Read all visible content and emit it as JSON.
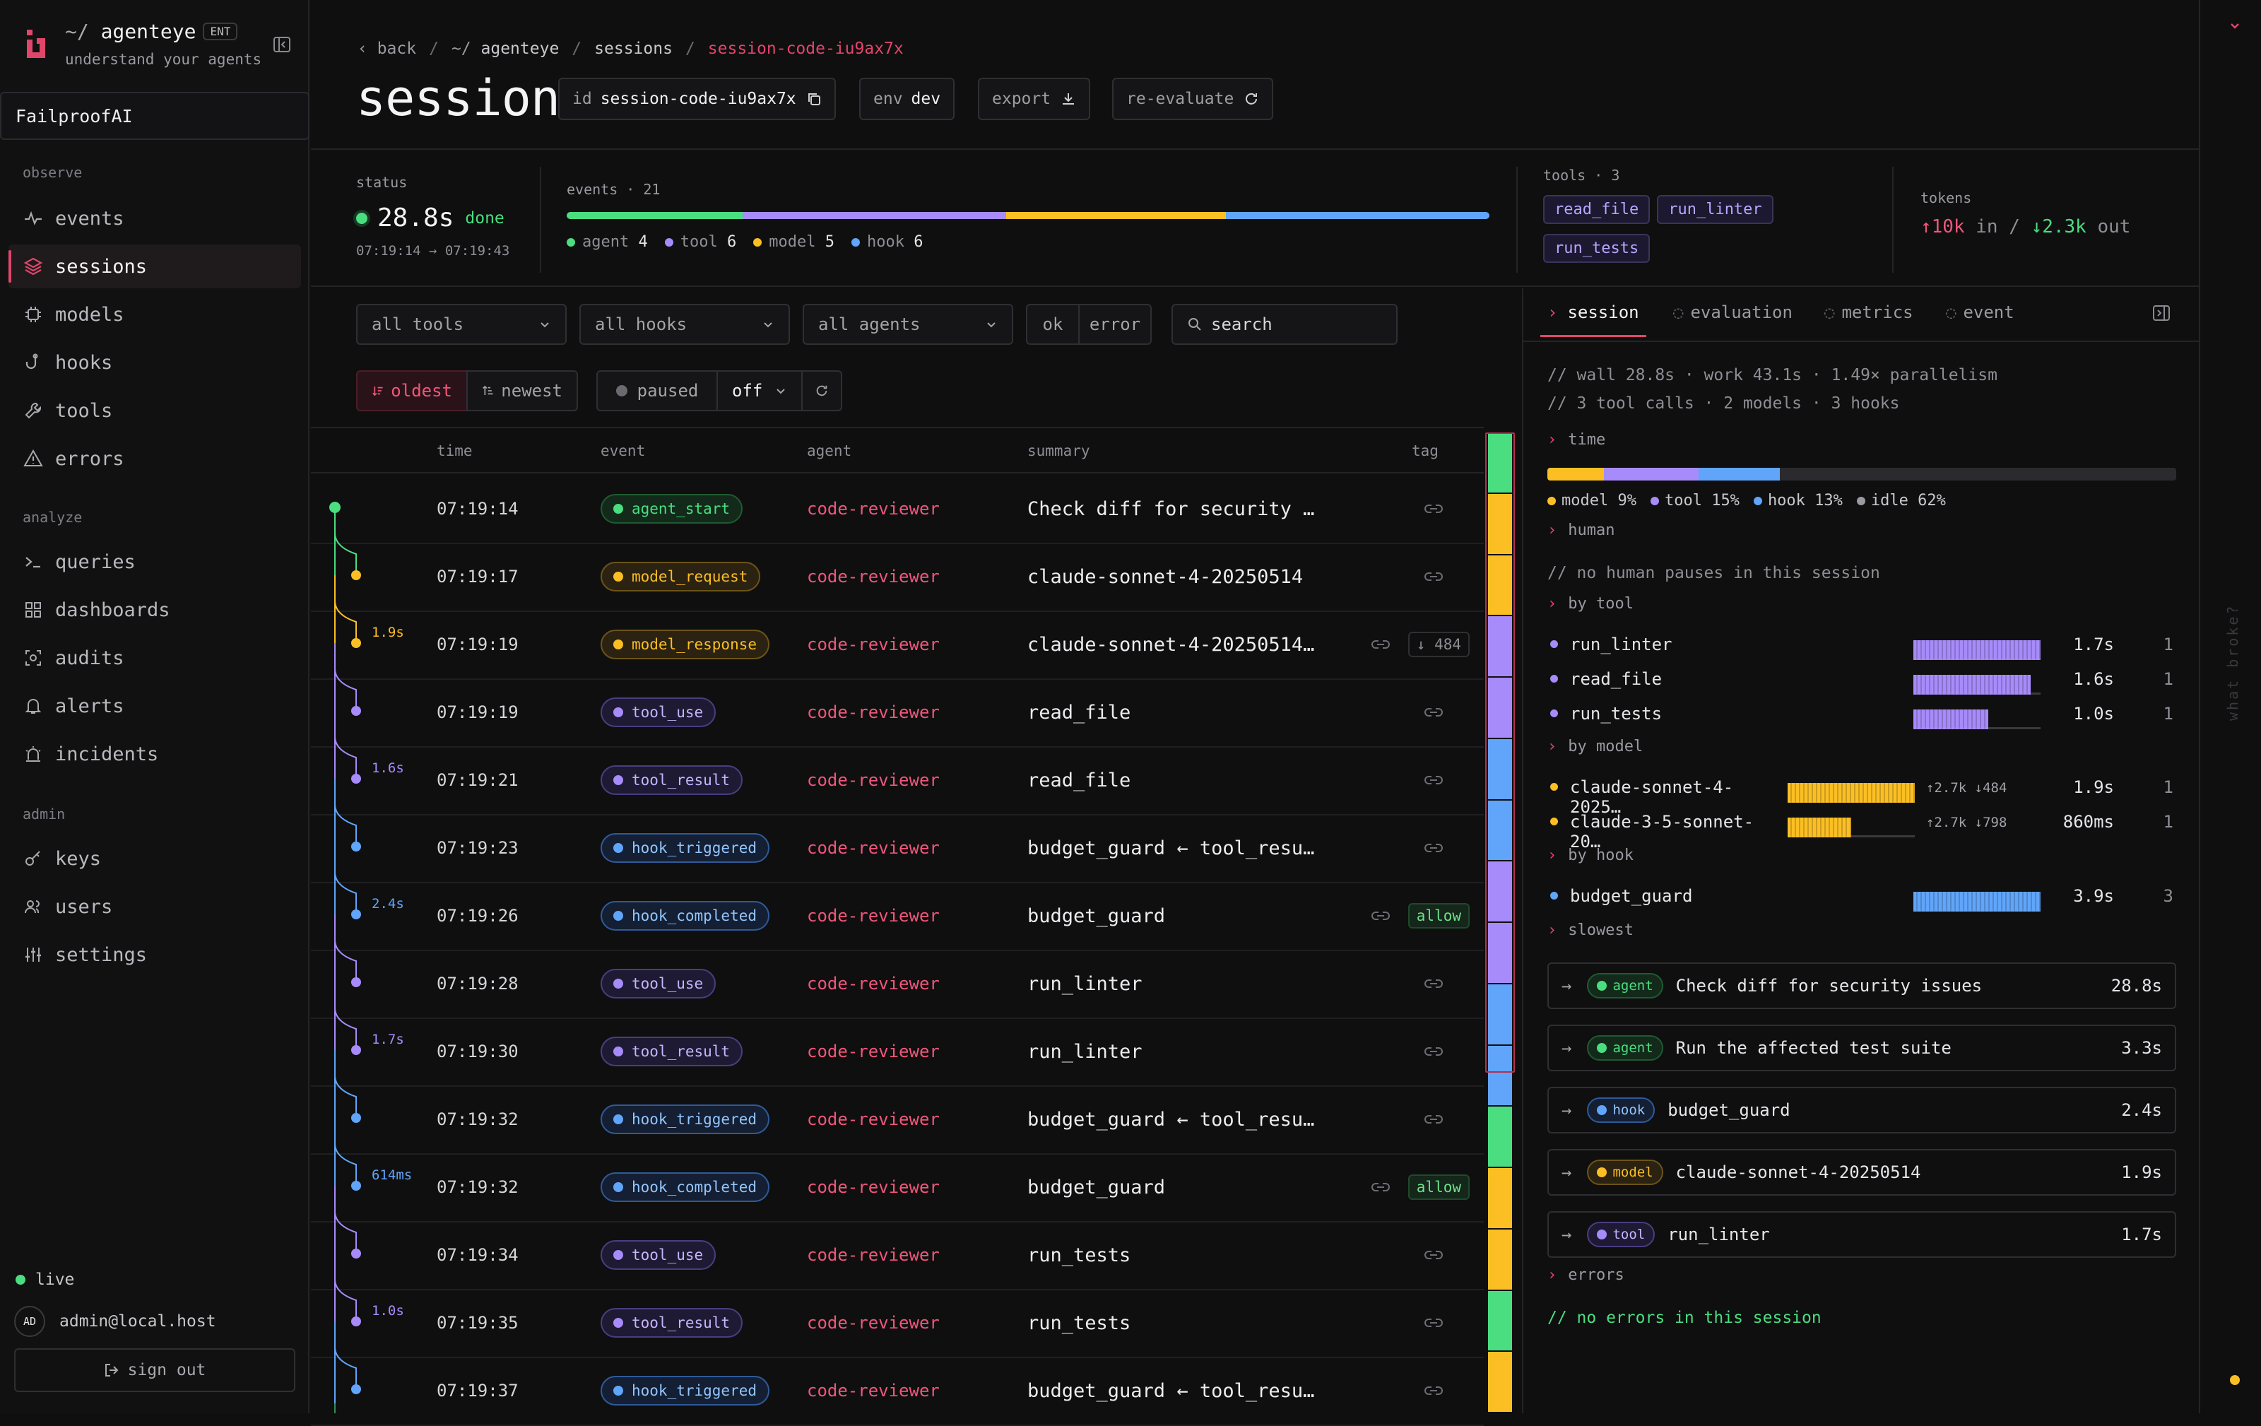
{
  "brand": {
    "name": "agenteye",
    "prefix": "~/",
    "edition": "ENT",
    "tagline": "understand your agents",
    "org": "FailproofAI"
  },
  "nav": {
    "observe_label": "observe",
    "analyze_label": "analyze",
    "admin_label": "admin",
    "observe": [
      {
        "label": "events",
        "icon": "activity-icon"
      },
      {
        "label": "sessions",
        "icon": "layers-icon",
        "active": true
      },
      {
        "label": "models",
        "icon": "cpu-icon"
      },
      {
        "label": "hooks",
        "icon": "hook-icon"
      },
      {
        "label": "tools",
        "icon": "wrench-icon"
      },
      {
        "label": "errors",
        "icon": "warning-icon"
      }
    ],
    "analyze": [
      {
        "label": "queries",
        "icon": "terminal-icon"
      },
      {
        "label": "dashboards",
        "icon": "grid-icon"
      },
      {
        "label": "audits",
        "icon": "scan-icon"
      },
      {
        "label": "alerts",
        "icon": "bell-icon"
      },
      {
        "label": "incidents",
        "icon": "siren-icon"
      }
    ],
    "admin": [
      {
        "label": "keys",
        "icon": "key-icon"
      },
      {
        "label": "users",
        "icon": "users-icon"
      },
      {
        "label": "settings",
        "icon": "sliders-icon"
      }
    ]
  },
  "footer": {
    "live": "live",
    "avatar": "AD",
    "user": "admin@local.host",
    "signout": "sign out"
  },
  "breadcrumb": {
    "back": "back",
    "root_prefix": "~/",
    "root": "agenteye",
    "sessions": "sessions",
    "current": "session-code-iu9ax7x"
  },
  "page": {
    "title": "session",
    "id_label": "id",
    "id_value": "session-code-iu9ax7x",
    "env_label": "env",
    "env_value": "dev",
    "export": "export",
    "reevaluate": "re-evaluate"
  },
  "stats": {
    "status_label": "status",
    "duration": "28.8s",
    "state": "done",
    "time_range": "07:19:14 → 07:19:43",
    "events_label": "events · 21",
    "events_breakdown": [
      {
        "name": "agent",
        "count": "4",
        "color": "#4ade80"
      },
      {
        "name": "tool",
        "count": "6",
        "color": "#a78bfa"
      },
      {
        "name": "model",
        "count": "5",
        "color": "#fbbf24"
      },
      {
        "name": "hook",
        "count": "6",
        "color": "#60a5fa"
      }
    ],
    "tools_label": "tools · 3",
    "tools": [
      "read_file",
      "run_linter",
      "run_tests"
    ],
    "tokens_label": "tokens",
    "tokens_in": "↑10k",
    "in_label": "in /",
    "tokens_out": "↓2.3k",
    "out_label": "out"
  },
  "filters": {
    "tools": "all tools",
    "hooks": "all hooks",
    "agents": "all agents",
    "ok": "ok",
    "error": "error",
    "search_placeholder": "search",
    "oldest": "oldest",
    "newest": "newest",
    "paused": "paused",
    "off": "off"
  },
  "table": {
    "headers": {
      "time": "time",
      "event": "event",
      "agent": "agent",
      "summary": "summary",
      "tag": "tag"
    },
    "rows": [
      {
        "time": "07:19:14",
        "event": "agent_start",
        "kind": "agent",
        "agent": "code-reviewer",
        "summary": "Check diff for security …",
        "dur": "",
        "tag": ""
      },
      {
        "time": "07:19:17",
        "event": "model_request",
        "kind": "model",
        "agent": "code-reviewer",
        "summary": "claude-sonnet-4-20250514",
        "dur": "",
        "tag": ""
      },
      {
        "time": "07:19:19",
        "event": "model_response",
        "kind": "model",
        "agent": "code-reviewer",
        "summary": "claude-sonnet-4-20250514…",
        "dur": "1.9s",
        "tag": "↓ 484"
      },
      {
        "time": "07:19:19",
        "event": "tool_use",
        "kind": "tool",
        "agent": "code-reviewer",
        "summary": "read_file",
        "dur": "",
        "tag": ""
      },
      {
        "time": "07:19:21",
        "event": "tool_result",
        "kind": "tool",
        "agent": "code-reviewer",
        "summary": "read_file",
        "dur": "1.6s",
        "tag": ""
      },
      {
        "time": "07:19:23",
        "event": "hook_triggered",
        "kind": "hook",
        "agent": "code-reviewer",
        "summary": "budget_guard ← tool_resu…",
        "dur": "",
        "tag": ""
      },
      {
        "time": "07:19:26",
        "event": "hook_completed",
        "kind": "hook",
        "agent": "code-reviewer",
        "summary": "budget_guard",
        "dur": "2.4s",
        "tag": "allow"
      },
      {
        "time": "07:19:28",
        "event": "tool_use",
        "kind": "tool",
        "agent": "code-reviewer",
        "summary": "run_linter",
        "dur": "",
        "tag": ""
      },
      {
        "time": "07:19:30",
        "event": "tool_result",
        "kind": "tool",
        "agent": "code-reviewer",
        "summary": "run_linter",
        "dur": "1.7s",
        "tag": ""
      },
      {
        "time": "07:19:32",
        "event": "hook_triggered",
        "kind": "hook",
        "agent": "code-reviewer",
        "summary": "budget_guard ← tool_resu…",
        "dur": "",
        "tag": ""
      },
      {
        "time": "07:19:32",
        "event": "hook_completed",
        "kind": "hook",
        "agent": "code-reviewer",
        "summary": "budget_guard",
        "dur": "614ms",
        "tag": "allow"
      },
      {
        "time": "07:19:34",
        "event": "tool_use",
        "kind": "tool",
        "agent": "code-reviewer",
        "summary": "run_tests",
        "dur": "",
        "tag": ""
      },
      {
        "time": "07:19:35",
        "event": "tool_result",
        "kind": "tool",
        "agent": "code-reviewer",
        "summary": "run_tests",
        "dur": "1.0s",
        "tag": ""
      },
      {
        "time": "07:19:37",
        "event": "hook_triggered",
        "kind": "hook",
        "agent": "code-reviewer",
        "summary": "budget_guard ← tool_resu…",
        "dur": "",
        "tag": ""
      }
    ]
  },
  "minimap_colors": [
    "#4ade80",
    "#fbbf24",
    "#fbbf24",
    "#a78bfa",
    "#a78bfa",
    "#60a5fa",
    "#60a5fa",
    "#a78bfa",
    "#a78bfa",
    "#60a5fa",
    "#60a5fa",
    "#4ade80",
    "#fbbf24",
    "#fbbf24",
    "#4ade80",
    "#fbbf24"
  ],
  "panel": {
    "tabs": [
      "session",
      "evaluation",
      "metrics",
      "event"
    ],
    "summary1": "// wall 28.8s · work 43.1s · 1.49× parallelism",
    "summary2": "// 3 tool calls · 2 models · 3 hooks",
    "time_label": "time",
    "time_split": [
      {
        "name": "model",
        "pct": 9,
        "color": "#fbbf24"
      },
      {
        "name": "tool",
        "pct": 15,
        "color": "#a78bfa"
      },
      {
        "name": "hook",
        "pct": 13,
        "color": "#60a5fa"
      },
      {
        "name": "idle",
        "pct": 62,
        "color": "#9a9aa0"
      }
    ],
    "time_legend": [
      "model 9%",
      "tool 15%",
      "hook 13%",
      "idle 62%"
    ],
    "human_label": "human",
    "human_note": "// no human pauses in this session",
    "by_tool_label": "by tool",
    "by_tool": [
      {
        "name": "run_linter",
        "dur": "1.7s",
        "count": "1",
        "fill": 1.0
      },
      {
        "name": "read_file",
        "dur": "1.6s",
        "count": "1",
        "fill": 0.92
      },
      {
        "name": "run_tests",
        "dur": "1.0s",
        "count": "1",
        "fill": 0.59
      }
    ],
    "by_model_label": "by model",
    "by_model": [
      {
        "name": "claude-sonnet-4-2025…",
        "tok": "↑2.7k ↓484",
        "dur": "1.9s",
        "count": "1",
        "fill": 1.0
      },
      {
        "name": "claude-3-5-sonnet-20…",
        "tok": "↑2.7k ↓798",
        "dur": "860ms",
        "count": "1",
        "fill": 0.5
      }
    ],
    "by_hook_label": "by hook",
    "by_hook": [
      {
        "name": "budget_guard",
        "dur": "3.9s",
        "count": "3",
        "fill": 1.0
      }
    ],
    "slowest_label": "slowest",
    "slowest": [
      {
        "kind": "agent",
        "label": "Check diff for security issues",
        "dur": "28.8s"
      },
      {
        "kind": "agent",
        "label": "Run the affected test suite",
        "dur": "3.3s"
      },
      {
        "kind": "hook",
        "label": "budget_guard",
        "dur": "2.4s"
      },
      {
        "kind": "model",
        "label": "claude-sonnet-4-20250514",
        "dur": "1.9s"
      },
      {
        "kind": "tool",
        "label": "run_linter",
        "dur": "1.7s"
      }
    ],
    "errors_label": "errors",
    "errors_note": "// no errors in this session"
  },
  "strip": {
    "vertical": "what broke?"
  },
  "colors": {
    "agent": "#4ade80",
    "model": "#fbbf24",
    "tool": "#a78bfa",
    "hook": "#60a5fa",
    "accent": "#e0466a"
  }
}
